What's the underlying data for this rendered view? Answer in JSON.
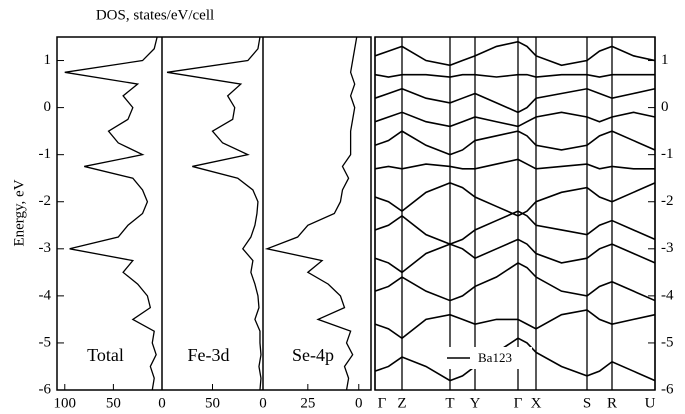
{
  "chart_data": [
    {
      "type": "dos",
      "title": "DOS, states/eV/cell",
      "ylabel": "Energy, eV",
      "label": "Total",
      "color": "#000000",
      "y": [
        -6,
        -5.75,
        -5.5,
        -5.25,
        -5,
        -4.75,
        -4.5,
        -4.25,
        -4,
        -3.75,
        -3.5,
        -3.25,
        -3,
        -2.75,
        -2.5,
        -2.25,
        -2,
        -1.75,
        -1.5,
        -1.25,
        -1,
        -0.75,
        -0.5,
        -0.25,
        0,
        0.25,
        0.5,
        0.75,
        1,
        1.25,
        1.5
      ],
      "values": [
        10,
        8,
        12,
        6,
        10,
        8,
        30,
        12,
        15,
        25,
        40,
        30,
        95,
        45,
        35,
        20,
        15,
        20,
        30,
        80,
        20,
        45,
        55,
        35,
        30,
        40,
        25,
        100,
        20,
        8,
        5
      ],
      "xlim": [
        108,
        0
      ],
      "xticks": [
        100,
        50,
        0
      ],
      "ylim": [
        -6,
        1.5
      ],
      "yticks": [
        -6,
        -5,
        -4,
        -3,
        -2,
        -1,
        0,
        1
      ]
    },
    {
      "type": "dos",
      "label": "Fe-3d",
      "color": "#000000",
      "values": [
        3,
        2,
        4,
        2,
        3,
        3,
        8,
        4,
        5,
        8,
        12,
        10,
        20,
        12,
        8,
        6,
        5,
        10,
        25,
        70,
        15,
        40,
        50,
        30,
        28,
        35,
        22,
        95,
        15,
        5,
        3
      ],
      "xlim": [
        100,
        0
      ],
      "xticks": [
        50,
        0
      ],
      "ylim": [
        -6,
        1.5
      ]
    },
    {
      "type": "dos",
      "label": "Se-4p",
      "color": "#000000",
      "values": [
        6,
        5,
        7,
        3,
        6,
        4,
        20,
        7,
        9,
        15,
        25,
        18,
        45,
        30,
        25,
        12,
        9,
        8,
        5,
        8,
        4,
        4,
        4,
        3,
        2,
        4,
        2,
        4,
        3,
        2,
        1
      ],
      "xlim": [
        47,
        -6
      ],
      "xticks": [
        25,
        0
      ],
      "ylim": [
        -6,
        1.5
      ]
    },
    {
      "type": "bands",
      "legend": "Ba123",
      "color": "#000000",
      "x": [
        0,
        13.5,
        27,
        51,
        75,
        87.5,
        100,
        121.5,
        143,
        152,
        161,
        186.5,
        212,
        224.5,
        237,
        258.5,
        280
      ],
      "xlim": [
        0,
        280
      ],
      "xticks": [
        {
          "value": 0,
          "label": "Γ"
        },
        {
          "value": 27,
          "label": "Z"
        },
        {
          "value": 75,
          "label": "T"
        },
        {
          "value": 100,
          "label": "Y"
        },
        {
          "value": 143,
          "label": "Γ"
        },
        {
          "value": 161,
          "label": "X"
        },
        {
          "value": 212,
          "label": "S"
        },
        {
          "value": 237,
          "label": "R"
        },
        {
          "value": 280,
          "label": "U"
        }
      ],
      "ylim": [
        -6,
        1.5
      ],
      "yticks": [
        -6,
        -5,
        -4,
        -3,
        -2,
        -1,
        0,
        1
      ],
      "series": [
        {
          "values": [
            -5.6,
            -5.5,
            -5.3,
            -5.5,
            -5.8,
            -5.7,
            -5.5,
            -5.2,
            -4.9,
            -5.0,
            -5.2,
            -5.5,
            -5.7,
            -5.6,
            -5.4,
            -5.6,
            -5.8
          ]
        },
        {
          "values": [
            -4.6,
            -4.7,
            -4.9,
            -4.5,
            -4.4,
            -4.5,
            -4.6,
            -4.5,
            -4.5,
            -4.6,
            -4.7,
            -4.4,
            -4.3,
            -4.5,
            -4.6,
            -4.5,
            -4.4
          ]
        },
        {
          "values": [
            -3.9,
            -3.8,
            -3.6,
            -3.9,
            -4.1,
            -4.0,
            -3.8,
            -3.6,
            -3.3,
            -3.4,
            -3.6,
            -3.9,
            -4.0,
            -3.8,
            -3.7,
            -3.9,
            -4.1
          ]
        },
        {
          "values": [
            -3.2,
            -3.3,
            -3.5,
            -3.1,
            -2.9,
            -3.0,
            -3.2,
            -3.0,
            -2.8,
            -2.9,
            -3.1,
            -3.3,
            -3.2,
            -3.0,
            -2.9,
            -3.1,
            -3.3
          ]
        },
        {
          "values": [
            -2.6,
            -2.5,
            -2.3,
            -2.7,
            -2.9,
            -2.8,
            -2.6,
            -2.4,
            -2.2,
            -2.3,
            -2.5,
            -2.6,
            -2.7,
            -2.5,
            -2.4,
            -2.6,
            -2.8
          ]
        },
        {
          "values": [
            -1.9,
            -2.0,
            -2.2,
            -1.8,
            -1.6,
            -1.7,
            -1.9,
            -2.1,
            -2.3,
            -2.2,
            -2.0,
            -1.8,
            -1.7,
            -1.9,
            -2.0,
            -1.8,
            -1.6
          ]
        },
        {
          "values": [
            -1.3,
            -1.25,
            -1.3,
            -1.2,
            -1.25,
            -1.3,
            -1.3,
            -1.2,
            -1.1,
            -1.2,
            -1.3,
            -1.25,
            -1.2,
            -1.3,
            -1.25,
            -1.3,
            -1.3
          ]
        },
        {
          "values": [
            -0.8,
            -0.7,
            -0.5,
            -0.8,
            -1.0,
            -0.9,
            -0.7,
            -0.6,
            -0.5,
            -0.6,
            -0.8,
            -0.9,
            -0.8,
            -0.6,
            -0.5,
            -0.7,
            -0.9
          ]
        },
        {
          "values": [
            -0.3,
            -0.2,
            -0.1,
            -0.3,
            -0.4,
            -0.3,
            -0.2,
            -0.3,
            -0.4,
            -0.3,
            -0.2,
            -0.1,
            -0.2,
            -0.3,
            -0.2,
            -0.1,
            -0.2
          ]
        },
        {
          "values": [
            0.2,
            0.3,
            0.4,
            0.2,
            0.1,
            0.2,
            0.3,
            0.1,
            -0.1,
            0.0,
            0.2,
            0.3,
            0.4,
            0.3,
            0.2,
            0.3,
            0.4
          ]
        },
        {
          "values": [
            0.7,
            0.65,
            0.7,
            0.7,
            0.65,
            0.7,
            0.7,
            0.65,
            0.7,
            0.7,
            0.65,
            0.7,
            0.7,
            0.65,
            0.7,
            0.7,
            0.7
          ]
        },
        {
          "values": [
            1.1,
            1.2,
            1.3,
            1.0,
            0.9,
            1.0,
            1.1,
            1.3,
            1.4,
            1.3,
            1.1,
            0.9,
            1.0,
            1.2,
            1.3,
            1.1,
            1.0
          ]
        }
      ]
    }
  ]
}
